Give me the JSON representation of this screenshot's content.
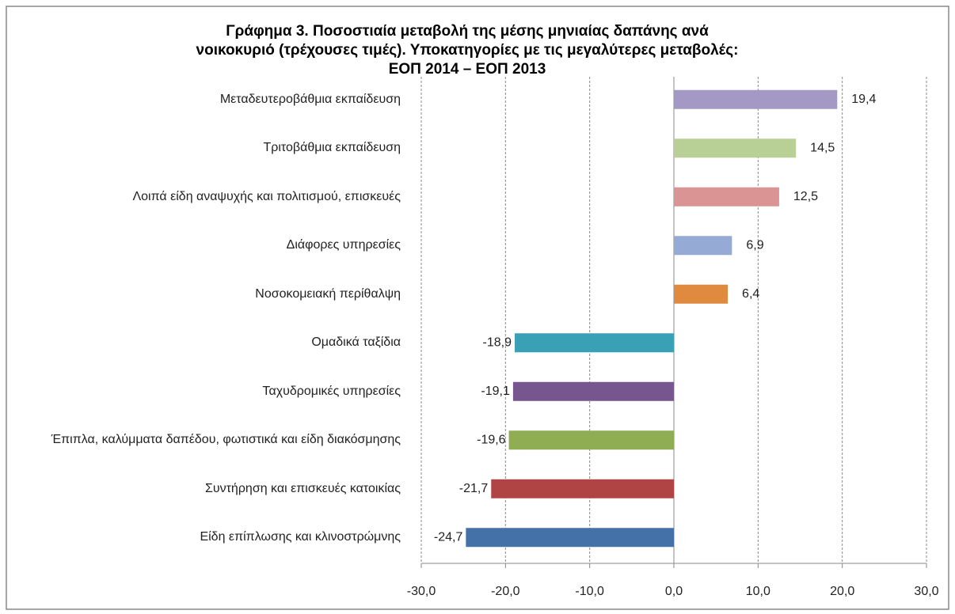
{
  "chart_data": {
    "type": "bar",
    "orientation": "horizontal",
    "title": "Γράφημα 3. Ποσοστιαία μεταβολή της μέσης μηνιαίας  δαπάνης ανά\nνοικοκυριό (τρέχουσες τιμές). Υποκατηγορίες με τις  μεγαλύτερες μεταβολές:\nΕΟΠ 2014 – ΕΟΠ 2013",
    "categories": [
      "Μεταδευτεροβάθμια εκπαίδευση",
      "Τριτοβάθμια εκπαίδευση",
      "Λοιπά είδη αναψυχής και πολιτισμού, επισκευές",
      "Διάφορες υπηρεσίες",
      "Νοσοκομειακή περίθαλψη",
      "Ομαδικά ταξίδια",
      "Ταχυδρομικές υπηρεσίες",
      "Έπιπλα, καλύμματα δαπέδου, φωτιστικά και είδη διακόσμησης",
      "Συντήρηση και επισκευές κατοικίας",
      "Είδη επίπλωσης και κλινοστρώμνης"
    ],
    "values": [
      19.4,
      14.5,
      12.5,
      6.9,
      6.4,
      -18.9,
      -19.1,
      -19.6,
      -21.7,
      -24.7
    ],
    "value_labels": [
      "19,4",
      "14,5",
      "12,5",
      "6,9",
      "6,4",
      "-18,9",
      "-19,1",
      "-19,6",
      "-21,7",
      "-24,7"
    ],
    "colors": [
      "#a499c4",
      "#b8d095",
      "#d99493",
      "#95aad4",
      "#e08a3f",
      "#3aa0b5",
      "#77558f",
      "#8fad52",
      "#b04444",
      "#4371a8"
    ],
    "xlim": [
      -30,
      30
    ],
    "xticks": [
      {
        "value": -30,
        "label": "-30,0"
      },
      {
        "value": -20,
        "label": "-20,0"
      },
      {
        "value": -10,
        "label": "-10,0"
      },
      {
        "value": 0,
        "label": "0,0"
      },
      {
        "value": 10,
        "label": "10,0"
      },
      {
        "value": 20,
        "label": "20,0"
      },
      {
        "value": 30,
        "label": "30,0"
      }
    ],
    "grid": true
  }
}
